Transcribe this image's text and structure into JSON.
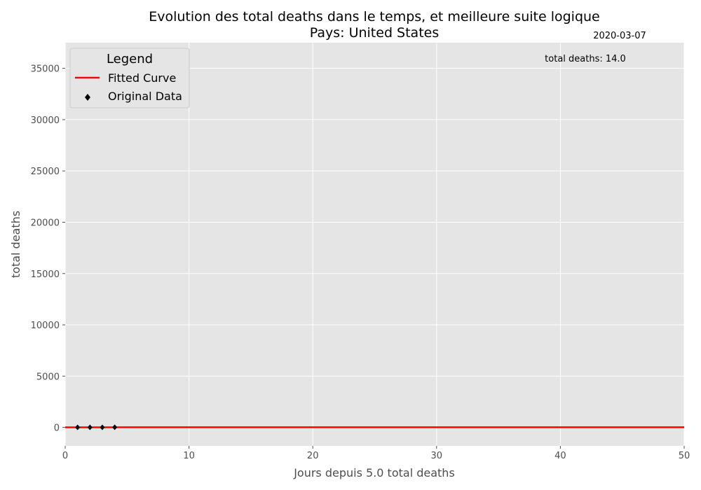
{
  "chart_data": {
    "type": "line",
    "title_line1": "Evolution des total deaths dans le temps, et meilleure suite logique",
    "title_line2": "Pays: United States",
    "date_label": "2020-03-07",
    "annotation": "total deaths: 14.0",
    "xlabel": "Jours depuis 5.0 total deaths",
    "ylabel": "total deaths",
    "xlim": [
      0,
      50
    ],
    "ylim": [
      -1800,
      37500
    ],
    "x_ticks": [
      0,
      10,
      20,
      30,
      40,
      50
    ],
    "y_ticks": [
      0,
      5000,
      10000,
      15000,
      20000,
      25000,
      30000,
      35000
    ],
    "grid": true,
    "legend": {
      "title": "Legend",
      "position": "top-left",
      "entries": [
        "Fitted Curve",
        "Original Data"
      ]
    },
    "series": [
      {
        "name": "Fitted Curve",
        "kind": "line",
        "color": "#ff0000",
        "x": [
          0,
          5,
          10,
          15,
          20,
          25,
          30,
          35,
          40,
          45,
          50
        ],
        "values": [
          5,
          14,
          14,
          14,
          14,
          14,
          14,
          14,
          14,
          14,
          14
        ]
      },
      {
        "name": "Original Data",
        "kind": "scatter",
        "color": "#000000",
        "marker": "diamond",
        "x": [
          1,
          2,
          3,
          4
        ],
        "values": [
          6,
          9,
          11,
          14
        ]
      }
    ],
    "colors": {
      "plot_background": "#e5e5e5",
      "grid": "#ffffff",
      "axis_text": "#4d4d4d"
    }
  }
}
